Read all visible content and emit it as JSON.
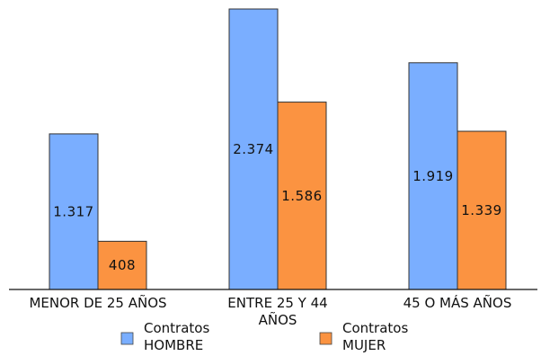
{
  "chart_data": {
    "type": "bar",
    "categories": [
      "MENOR DE 25 AÑOS",
      "ENTRE 25 Y 44 AÑOS",
      "45 O MÁS AÑOS"
    ],
    "category_label_lines": [
      [
        "MENOR DE 25 AÑOS"
      ],
      [
        "ENTRE 25 Y 44",
        "AÑOS"
      ],
      [
        "45 O MÁS AÑOS"
      ]
    ],
    "series": [
      {
        "name": "Contratos HOMBRE",
        "legend_lines": [
          "Contratos",
          "HOMBRE"
        ],
        "values": [
          1317,
          2374,
          1919
        ],
        "labels": [
          "1.317",
          "2.374",
          "1.919"
        ],
        "color": "#7aaeff"
      },
      {
        "name": "Contratos MUJER",
        "legend_lines": [
          "Contratos",
          "MUJER"
        ],
        "values": [
          408,
          1586,
          1339
        ],
        "labels": [
          "408",
          "1.586",
          "1.339"
        ],
        "color": "#fb9341"
      }
    ],
    "ylim": [
      0,
      2374
    ],
    "grid": false,
    "legend_position": "bottom",
    "bar_stroke": "#333333"
  }
}
